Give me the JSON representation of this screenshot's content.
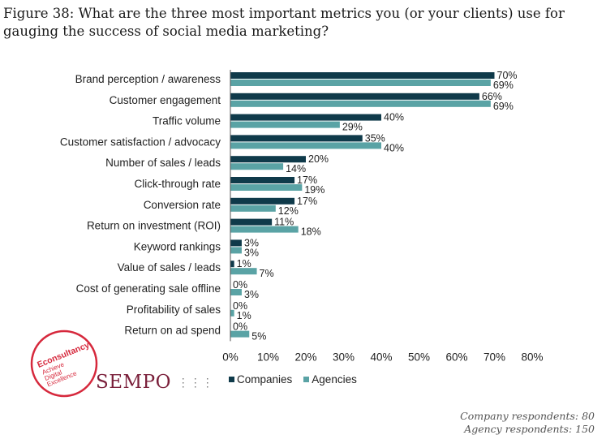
{
  "figure_title": "Figure 38: What are the three most important metrics you (or your clients) use for gauging the success of social media marketing?",
  "legend": {
    "companies": "Companies",
    "agencies": "Agencies"
  },
  "colors": {
    "companies": "#0f3a4a",
    "agencies": "#5aa3a5"
  },
  "logos": {
    "econsultancy": {
      "name": "Econsultancy",
      "tagline_1": "Achieve",
      "tagline_2": "Digital",
      "tagline_3": "Excellence"
    },
    "sempo": {
      "name": "SEMPO"
    }
  },
  "footnote": {
    "company_respondents": "Company respondents: 80",
    "agency_respondents": "Agency respondents: 150"
  },
  "chart_data": {
    "type": "bar",
    "orientation": "horizontal",
    "categories": [
      "Brand perception / awareness",
      "Customer engagement",
      "Traffic volume",
      "Customer satisfaction / advocacy",
      "Number of sales / leads",
      "Click-through rate",
      "Conversion rate",
      "Return on investment (ROI)",
      "Keyword rankings",
      "Value of sales / leads",
      "Cost of generating sale offline",
      "Profitability of sales",
      "Return on ad spend"
    ],
    "series": [
      {
        "name": "Companies",
        "values": [
          70,
          66,
          40,
          35,
          20,
          17,
          17,
          11,
          3,
          1,
          0,
          0,
          0
        ]
      },
      {
        "name": "Agencies",
        "values": [
          69,
          69,
          29,
          40,
          14,
          19,
          12,
          18,
          3,
          7,
          3,
          1,
          5
        ]
      }
    ],
    "xlim": [
      0,
      80
    ],
    "xticks": [
      0,
      10,
      20,
      30,
      40,
      50,
      60,
      70,
      80
    ],
    "tick_suffix": "%",
    "value_suffix": "%",
    "grid": false,
    "legend_position": "bottom"
  }
}
